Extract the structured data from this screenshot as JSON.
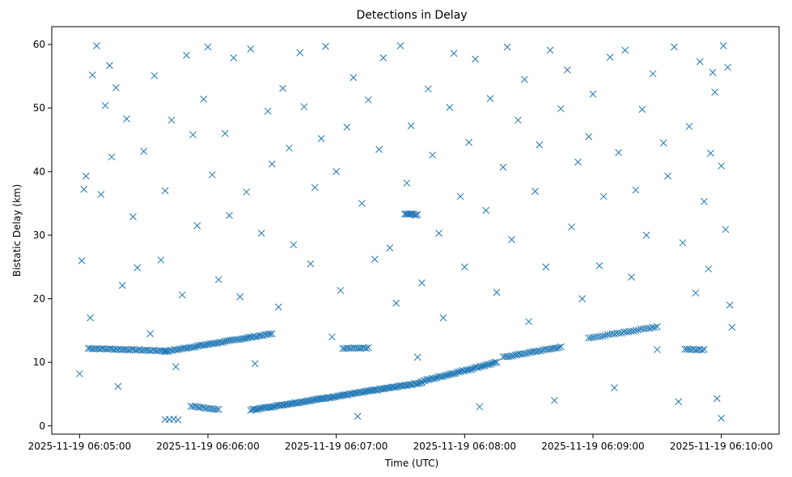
{
  "chart_data": {
    "type": "scatter",
    "title": "Detections in Delay",
    "xlabel": "Time (UTC)",
    "ylabel": "Bistatic Delay (km)",
    "marker": "x",
    "color": "#1f77b4",
    "grid": false,
    "legend": "none",
    "x_unit": "2025-11-19 time of day (HH:MM:SS)",
    "xlim": [
      "2025-11-19 06:04:47",
      "2025-11-19 06:10:27"
    ],
    "ylim": [
      -1.3,
      62.8
    ],
    "x_ticks": [
      "2025-11-19 06:05:00",
      "2025-11-19 06:06:00",
      "2025-11-19 06:07:00",
      "2025-11-19 06:08:00",
      "2025-11-19 06:09:00",
      "2025-11-19 06:10:00"
    ],
    "y_ticks": [
      0,
      10,
      20,
      30,
      40,
      50,
      60
    ],
    "tracks": [
      {
        "description": "near-constant track",
        "start": [
          "06:05:04",
          12.2
        ],
        "end": [
          "06:05:40",
          11.8
        ],
        "count": 40
      },
      {
        "description": "rising track",
        "start": [
          "06:05:40",
          11.7
        ],
        "end": [
          "06:06:30",
          14.5
        ],
        "count": 60
      },
      {
        "description": "slow rising track",
        "start": [
          "06:06:20",
          2.5
        ],
        "end": [
          "06:07:40",
          6.8
        ],
        "count": 110
      },
      {
        "description": "rising track",
        "start": [
          "06:07:40",
          7.0
        ],
        "end": [
          "06:08:15",
          10.0
        ],
        "count": 45
      },
      {
        "description": "rising track",
        "start": [
          "06:08:18",
          10.8
        ],
        "end": [
          "06:08:45",
          12.4
        ],
        "count": 30
      },
      {
        "description": "rising track",
        "start": [
          "06:08:58",
          13.8
        ],
        "end": [
          "06:09:30",
          15.6
        ],
        "count": 30
      },
      {
        "description": "flat cluster",
        "start": [
          "06:07:03",
          12.2
        ],
        "end": [
          "06:07:15",
          12.3
        ],
        "count": 14
      },
      {
        "description": "flat cluster",
        "start": [
          "06:07:32",
          33.4
        ],
        "end": [
          "06:07:38",
          33.2
        ],
        "count": 10
      },
      {
        "description": "flat cluster",
        "start": [
          "06:09:43",
          12.0
        ],
        "end": [
          "06:09:52",
          12.0
        ],
        "count": 10
      },
      {
        "description": "falling track",
        "start": [
          "06:05:52",
          3.1
        ],
        "end": [
          "06:06:05",
          2.6
        ],
        "count": 14
      },
      {
        "description": "falling cluster",
        "start": [
          "06:05:40",
          1.0
        ],
        "end": [
          "06:05:46",
          1.0
        ],
        "count": 4
      }
    ],
    "scatter_points": [
      [
        "06:05:00",
        8.2
      ],
      [
        "06:05:01",
        26.0
      ],
      [
        "06:05:02",
        37.2
      ],
      [
        "06:05:03",
        39.3
      ],
      [
        "06:05:05",
        17.0
      ],
      [
        "06:05:06",
        55.2
      ],
      [
        "06:05:08",
        59.8
      ],
      [
        "06:05:10",
        36.4
      ],
      [
        "06:05:12",
        50.4
      ],
      [
        "06:05:14",
        56.7
      ],
      [
        "06:05:15",
        42.3
      ],
      [
        "06:05:17",
        53.2
      ],
      [
        "06:05:18",
        6.2
      ],
      [
        "06:05:20",
        22.1
      ],
      [
        "06:05:22",
        48.3
      ],
      [
        "06:05:25",
        32.9
      ],
      [
        "06:05:27",
        24.9
      ],
      [
        "06:05:30",
        43.2
      ],
      [
        "06:05:33",
        14.5
      ],
      [
        "06:05:35",
        55.1
      ],
      [
        "06:05:38",
        26.1
      ],
      [
        "06:05:40",
        37.0
      ],
      [
        "06:05:43",
        48.1
      ],
      [
        "06:05:45",
        9.3
      ],
      [
        "06:05:48",
        20.6
      ],
      [
        "06:05:50",
        58.3
      ],
      [
        "06:05:53",
        45.8
      ],
      [
        "06:05:55",
        31.5
      ],
      [
        "06:05:58",
        51.4
      ],
      [
        "06:06:00",
        59.6
      ],
      [
        "06:06:02",
        39.5
      ],
      [
        "06:06:05",
        23.0
      ],
      [
        "06:06:08",
        46.0
      ],
      [
        "06:06:10",
        33.1
      ],
      [
        "06:06:12",
        57.9
      ],
      [
        "06:06:15",
        20.3
      ],
      [
        "06:06:18",
        36.8
      ],
      [
        "06:06:20",
        59.3
      ],
      [
        "06:06:22",
        9.8
      ],
      [
        "06:06:25",
        30.3
      ],
      [
        "06:06:28",
        49.5
      ],
      [
        "06:06:30",
        41.2
      ],
      [
        "06:06:33",
        18.7
      ],
      [
        "06:06:35",
        53.1
      ],
      [
        "06:06:38",
        43.7
      ],
      [
        "06:06:40",
        28.5
      ],
      [
        "06:06:43",
        58.7
      ],
      [
        "06:06:45",
        50.2
      ],
      [
        "06:06:48",
        25.5
      ],
      [
        "06:06:50",
        37.5
      ],
      [
        "06:06:53",
        45.2
      ],
      [
        "06:06:55",
        59.7
      ],
      [
        "06:06:58",
        14.0
      ],
      [
        "06:07:00",
        40.0
      ],
      [
        "06:07:02",
        21.3
      ],
      [
        "06:07:05",
        47.0
      ],
      [
        "06:07:08",
        54.8
      ],
      [
        "06:07:10",
        1.5
      ],
      [
        "06:07:12",
        35.0
      ],
      [
        "06:07:15",
        51.3
      ],
      [
        "06:07:18",
        26.2
      ],
      [
        "06:07:20",
        43.5
      ],
      [
        "06:07:22",
        57.9
      ],
      [
        "06:07:25",
        28.0
      ],
      [
        "06:07:28",
        19.3
      ],
      [
        "06:07:30",
        59.8
      ],
      [
        "06:07:33",
        38.2
      ],
      [
        "06:07:35",
        47.2
      ],
      [
        "06:07:38",
        10.8
      ],
      [
        "06:07:40",
        22.5
      ],
      [
        "06:07:43",
        53.0
      ],
      [
        "06:07:45",
        42.6
      ],
      [
        "06:07:48",
        30.3
      ],
      [
        "06:07:50",
        17.0
      ],
      [
        "06:07:53",
        50.1
      ],
      [
        "06:07:55",
        58.6
      ],
      [
        "06:07:58",
        36.1
      ],
      [
        "06:08:00",
        25.0
      ],
      [
        "06:08:02",
        44.6
      ],
      [
        "06:08:05",
        57.7
      ],
      [
        "06:08:07",
        3.0
      ],
      [
        "06:08:10",
        33.9
      ],
      [
        "06:08:12",
        51.5
      ],
      [
        "06:08:15",
        21.0
      ],
      [
        "06:08:18",
        40.7
      ],
      [
        "06:08:20",
        59.6
      ],
      [
        "06:08:22",
        29.3
      ],
      [
        "06:08:25",
        48.1
      ],
      [
        "06:08:28",
        54.5
      ],
      [
        "06:08:30",
        16.4
      ],
      [
        "06:08:33",
        36.9
      ],
      [
        "06:08:35",
        44.2
      ],
      [
        "06:08:38",
        25.0
      ],
      [
        "06:08:40",
        59.1
      ],
      [
        "06:08:42",
        4.0
      ],
      [
        "06:08:45",
        49.9
      ],
      [
        "06:08:48",
        56.0
      ],
      [
        "06:08:50",
        31.3
      ],
      [
        "06:08:53",
        41.5
      ],
      [
        "06:08:55",
        20.0
      ],
      [
        "06:08:58",
        45.5
      ],
      [
        "06:09:00",
        52.2
      ],
      [
        "06:09:03",
        25.2
      ],
      [
        "06:09:05",
        36.1
      ],
      [
        "06:09:08",
        58.0
      ],
      [
        "06:09:10",
        6.0
      ],
      [
        "06:09:12",
        43.0
      ],
      [
        "06:09:15",
        59.1
      ],
      [
        "06:09:18",
        23.4
      ],
      [
        "06:09:20",
        37.1
      ],
      [
        "06:09:23",
        49.8
      ],
      [
        "06:09:25",
        30.0
      ],
      [
        "06:09:28",
        55.4
      ],
      [
        "06:09:30",
        12.0
      ],
      [
        "06:09:33",
        44.5
      ],
      [
        "06:09:35",
        39.3
      ],
      [
        "06:09:38",
        59.6
      ],
      [
        "06:09:40",
        3.8
      ],
      [
        "06:09:42",
        28.8
      ],
      [
        "06:09:45",
        47.1
      ],
      [
        "06:09:48",
        20.9
      ],
      [
        "06:09:50",
        57.3
      ],
      [
        "06:09:52",
        35.3
      ],
      [
        "06:09:55",
        42.9
      ],
      [
        "06:09:57",
        52.5
      ],
      [
        "06:10:00",
        1.2
      ],
      [
        "06:10:01",
        59.8
      ],
      [
        "06:10:02",
        30.9
      ],
      [
        "06:10:04",
        19.0
      ],
      [
        "06:10:05",
        15.5
      ],
      [
        "06:10:03",
        56.4
      ],
      [
        "06:09:58",
        4.3
      ],
      [
        "06:10:00",
        40.9
      ],
      [
        "06:09:56",
        55.6
      ],
      [
        "06:09:54",
        24.7
      ]
    ]
  }
}
